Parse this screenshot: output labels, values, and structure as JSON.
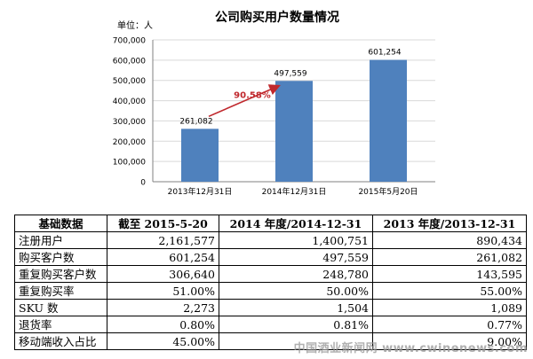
{
  "chart_data": {
    "type": "bar",
    "title": "公司购买用户数量情况",
    "unit_label": "单位：人",
    "categories": [
      "2013年12月31日",
      "2014年12月31日",
      "2015年5月20日"
    ],
    "values": [
      261082,
      497559,
      601254
    ],
    "value_labels": [
      "261,082",
      "497,559",
      "601,254"
    ],
    "yticks": [
      "0",
      "100,000",
      "200,000",
      "300,000",
      "400,000",
      "500,000",
      "600,000",
      "700,000"
    ],
    "ylim": [
      0,
      700000
    ],
    "bar_color": "#4f81bd",
    "annotation": {
      "text": "90.58%",
      "color": "#c0282d",
      "from_index": 0,
      "to_index": 1
    }
  },
  "table": {
    "headers": [
      "基础数据",
      "截至 2015-5-20",
      "2014 年度/2014-12-31",
      "2013 年度/2013-12-31"
    ],
    "rows": [
      [
        "注册用户",
        "2,161,577",
        "1,400,751",
        "890,434"
      ],
      [
        "购买客户数",
        "601,254",
        "497,559",
        "261,082"
      ],
      [
        "重复购买客户数",
        "306,640",
        "248,780",
        "143,595"
      ],
      [
        "重复购买率",
        "51.00%",
        "50.00%",
        "55.00%"
      ],
      [
        "SKU 数",
        "2,273",
        "1,504",
        "1,089"
      ],
      [
        "退货率",
        "0.80%",
        "0.81%",
        "0.77%"
      ],
      [
        "移动端收入占比",
        "45.00%",
        "",
        "9.00%"
      ]
    ]
  },
  "watermark": "中国酒业新闻网 www.cwinenews.com"
}
